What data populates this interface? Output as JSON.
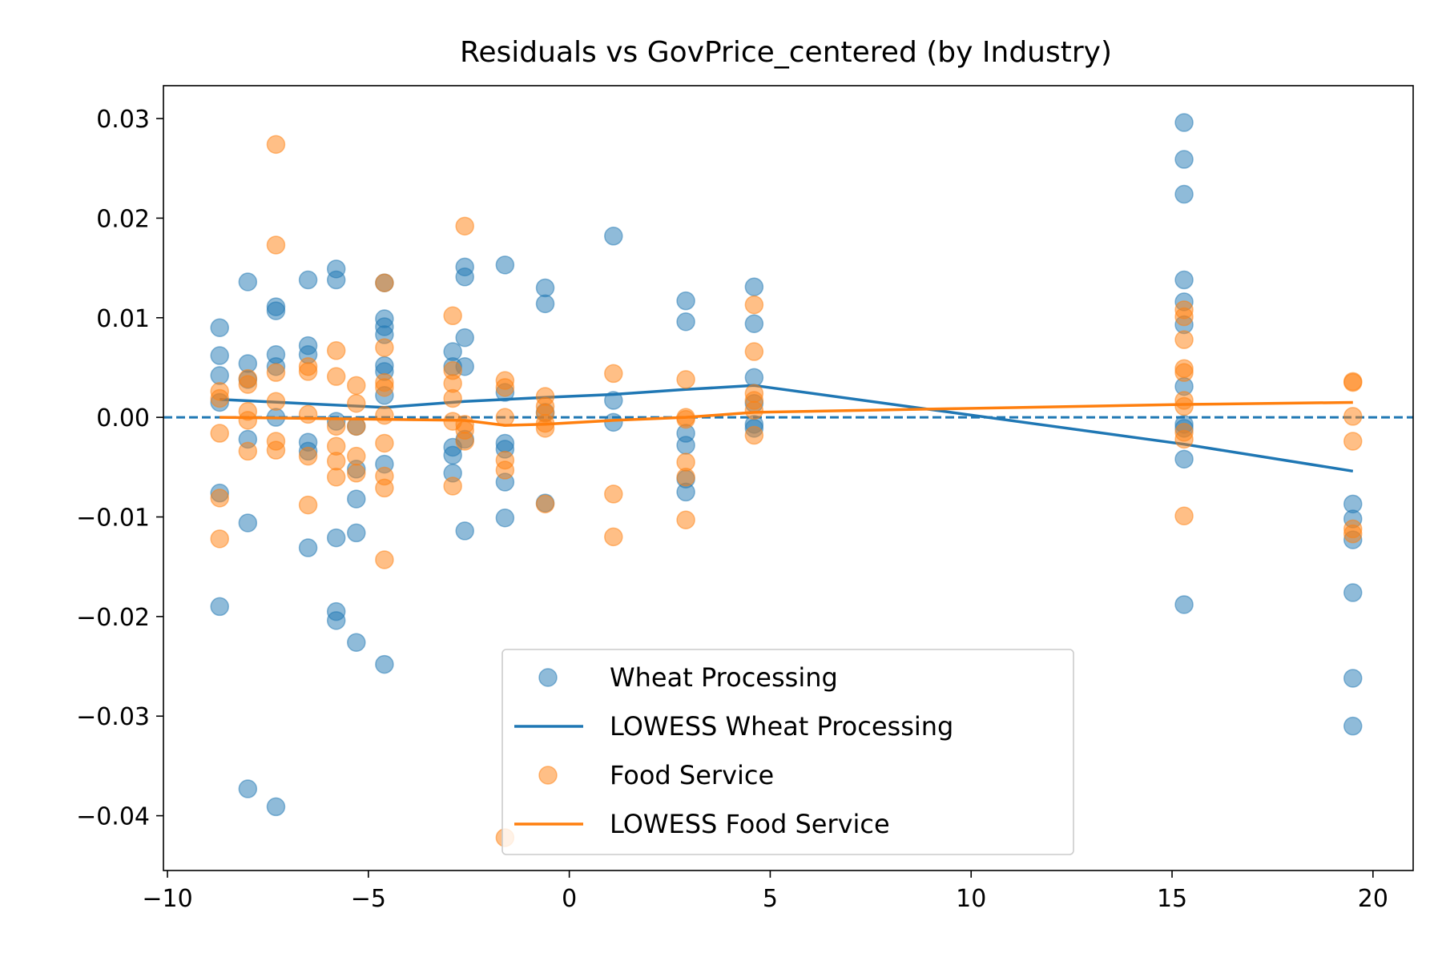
{
  "chart_data": {
    "type": "scatter",
    "title": "Residuals vs GovPrice_centered (by Industry)",
    "xlabel": "",
    "ylabel": "",
    "xlim": [
      -10.1,
      21.0
    ],
    "ylim": [
      -0.0455,
      0.0333
    ],
    "xticks": [
      -10,
      -5,
      0,
      5,
      10,
      15,
      20
    ],
    "xtick_labels": [
      "−10",
      "−5",
      "0",
      "5",
      "10",
      "15",
      "20"
    ],
    "yticks": [
      0.03,
      0.02,
      0.01,
      0.0,
      -0.01,
      -0.02,
      -0.03,
      -0.04
    ],
    "ytick_labels": [
      "0.03",
      "0.02",
      "0.01",
      "0.00",
      "−0.01",
      "−0.02",
      "−0.03",
      "−0.04"
    ],
    "grid": false,
    "legend_position": "lower-center",
    "reference_line": {
      "y": 0,
      "style": "dashed",
      "color": "#1f77b4"
    },
    "series": [
      {
        "name": "Wheat Processing",
        "kind": "scatter",
        "color": "#1f77b4",
        "points": [
          [
            -8.7,
            0.009
          ],
          [
            -8.7,
            0.0062
          ],
          [
            -8.7,
            0.0042
          ],
          [
            -8.7,
            0.0015
          ],
          [
            -8.7,
            -0.0076
          ],
          [
            -8.7,
            -0.019
          ],
          [
            -8.0,
            0.0136
          ],
          [
            -8.0,
            0.0054
          ],
          [
            -8.0,
            0.0038
          ],
          [
            -8.0,
            -0.0022
          ],
          [
            -8.0,
            -0.0106
          ],
          [
            -8.0,
            -0.0373
          ],
          [
            -7.3,
            0.0111
          ],
          [
            -7.3,
            0.0107
          ],
          [
            -7.3,
            0.0063
          ],
          [
            -7.3,
            0.0051
          ],
          [
            -7.3,
            0.0
          ],
          [
            -7.3,
            -0.0391
          ],
          [
            -6.5,
            0.0138
          ],
          [
            -6.5,
            0.0072
          ],
          [
            -6.5,
            0.0063
          ],
          [
            -6.5,
            -0.0025
          ],
          [
            -6.5,
            -0.0034
          ],
          [
            -6.5,
            -0.0131
          ],
          [
            -5.8,
            0.0149
          ],
          [
            -5.8,
            0.0138
          ],
          [
            -5.8,
            -0.0004
          ],
          [
            -5.8,
            -0.0121
          ],
          [
            -5.8,
            -0.0195
          ],
          [
            -5.8,
            -0.0204
          ],
          [
            -5.3,
            -0.0009
          ],
          [
            -5.3,
            -0.0052
          ],
          [
            -5.3,
            -0.0082
          ],
          [
            -5.3,
            -0.0116
          ],
          [
            -5.3,
            -0.0226
          ],
          [
            -4.6,
            0.0135
          ],
          [
            -4.6,
            0.0099
          ],
          [
            -4.6,
            0.0091
          ],
          [
            -4.6,
            0.0083
          ],
          [
            -4.6,
            0.0052
          ],
          [
            -4.6,
            0.0046
          ],
          [
            -4.6,
            0.0022
          ],
          [
            -4.6,
            -0.0047
          ],
          [
            -4.6,
            -0.0248
          ],
          [
            -2.9,
            0.0066
          ],
          [
            -2.9,
            0.0051
          ],
          [
            -2.9,
            -0.003
          ],
          [
            -2.9,
            -0.0038
          ],
          [
            -2.9,
            -0.0056
          ],
          [
            -2.6,
            0.0151
          ],
          [
            -2.6,
            0.0141
          ],
          [
            -2.6,
            0.008
          ],
          [
            -2.6,
            0.0051
          ],
          [
            -2.6,
            -0.0022
          ],
          [
            -2.6,
            -0.0114
          ],
          [
            -1.6,
            0.0153
          ],
          [
            -1.6,
            0.0025
          ],
          [
            -1.6,
            -0.0026
          ],
          [
            -1.6,
            -0.0032
          ],
          [
            -1.6,
            -0.0065
          ],
          [
            -1.6,
            -0.0101
          ],
          [
            -0.6,
            0.013
          ],
          [
            -0.6,
            0.0114
          ],
          [
            -0.6,
            0.0005
          ],
          [
            -0.6,
            -0.0086
          ],
          [
            1.1,
            0.0182
          ],
          [
            1.1,
            0.0017
          ],
          [
            1.1,
            -0.0005
          ],
          [
            2.9,
            0.0117
          ],
          [
            2.9,
            0.0096
          ],
          [
            2.9,
            -0.0016
          ],
          [
            2.9,
            -0.0028
          ],
          [
            2.9,
            -0.0062
          ],
          [
            2.9,
            -0.0075
          ],
          [
            4.6,
            0.0131
          ],
          [
            4.6,
            0.0094
          ],
          [
            4.6,
            0.004
          ],
          [
            4.6,
            0.0014
          ],
          [
            4.6,
            -0.0007
          ],
          [
            4.6,
            -0.0011
          ],
          [
            15.3,
            0.0296
          ],
          [
            15.3,
            0.0259
          ],
          [
            15.3,
            0.0224
          ],
          [
            15.3,
            0.0138
          ],
          [
            15.3,
            0.0116
          ],
          [
            15.3,
            0.0093
          ],
          [
            15.3,
            0.0031
          ],
          [
            15.3,
            -0.0007
          ],
          [
            15.3,
            -0.0011
          ],
          [
            15.3,
            -0.0042
          ],
          [
            15.3,
            -0.0188
          ],
          [
            19.5,
            -0.0087
          ],
          [
            19.5,
            -0.0102
          ],
          [
            19.5,
            -0.0123
          ],
          [
            19.5,
            -0.0176
          ],
          [
            19.5,
            -0.0262
          ],
          [
            19.5,
            -0.031
          ]
        ]
      },
      {
        "name": "LOWESS Wheat Processing",
        "kind": "line",
        "color": "#1f77b4",
        "points": [
          [
            -8.7,
            0.0018
          ],
          [
            -4.6,
            0.001
          ],
          [
            -2.6,
            0.0016
          ],
          [
            -0.6,
            0.002
          ],
          [
            1.1,
            0.0023
          ],
          [
            2.9,
            0.0028
          ],
          [
            4.6,
            0.0032
          ],
          [
            15.3,
            -0.0027
          ],
          [
            19.5,
            -0.0054
          ]
        ]
      },
      {
        "name": "Food Service",
        "kind": "scatter",
        "color": "#ff7f0e",
        "points": [
          [
            -8.7,
            0.0026
          ],
          [
            -8.7,
            0.0019
          ],
          [
            -8.7,
            -0.0016
          ],
          [
            -8.7,
            -0.0081
          ],
          [
            -8.7,
            -0.0122
          ],
          [
            -8.0,
            0.0039
          ],
          [
            -8.0,
            0.0033
          ],
          [
            -8.0,
            0.0006
          ],
          [
            -8.0,
            -0.0003
          ],
          [
            -8.0,
            -0.0034
          ],
          [
            -7.3,
            0.0274
          ],
          [
            -7.3,
            0.0173
          ],
          [
            -7.3,
            0.0045
          ],
          [
            -7.3,
            0.0016
          ],
          [
            -7.3,
            -0.0024
          ],
          [
            -7.3,
            -0.0033
          ],
          [
            -6.5,
            0.0051
          ],
          [
            -6.5,
            0.0046
          ],
          [
            -6.5,
            0.0003
          ],
          [
            -6.5,
            -0.0039
          ],
          [
            -6.5,
            -0.0088
          ],
          [
            -5.8,
            0.0067
          ],
          [
            -5.8,
            0.0041
          ],
          [
            -5.8,
            -0.0009
          ],
          [
            -5.8,
            -0.0029
          ],
          [
            -5.8,
            -0.0044
          ],
          [
            -5.8,
            -0.006
          ],
          [
            -5.3,
            0.0032
          ],
          [
            -5.3,
            0.0014
          ],
          [
            -5.3,
            -0.0009
          ],
          [
            -5.3,
            -0.0039
          ],
          [
            -5.3,
            -0.0056
          ],
          [
            -4.6,
            0.0135
          ],
          [
            -4.6,
            0.007
          ],
          [
            -4.6,
            0.0035
          ],
          [
            -4.6,
            0.003
          ],
          [
            -4.6,
            0.0002
          ],
          [
            -4.6,
            -0.0026
          ],
          [
            -4.6,
            -0.0059
          ],
          [
            -4.6,
            -0.0071
          ],
          [
            -4.6,
            -0.0143
          ],
          [
            -2.9,
            0.0102
          ],
          [
            -2.9,
            0.0047
          ],
          [
            -2.9,
            0.0034
          ],
          [
            -2.9,
            0.0019
          ],
          [
            -2.9,
            -0.0004
          ],
          [
            -2.9,
            -0.0069
          ],
          [
            -2.6,
            0.0192
          ],
          [
            -2.6,
            -0.0007
          ],
          [
            -2.6,
            -0.0013
          ],
          [
            -2.6,
            -0.0024
          ],
          [
            -1.6,
            0.0037
          ],
          [
            -1.6,
            0.003
          ],
          [
            -1.6,
            0.0
          ],
          [
            -1.6,
            -0.0043
          ],
          [
            -1.6,
            -0.0053
          ],
          [
            -1.6,
            -0.0422
          ],
          [
            -0.6,
            0.0021
          ],
          [
            -0.6,
            0.0011
          ],
          [
            -0.6,
            0.0004
          ],
          [
            -0.6,
            -0.0006
          ],
          [
            -0.6,
            -0.0011
          ],
          [
            -0.6,
            -0.0087
          ],
          [
            1.1,
            0.0044
          ],
          [
            1.1,
            -0.0077
          ],
          [
            1.1,
            -0.012
          ],
          [
            2.9,
            0.0038
          ],
          [
            2.9,
            0.0
          ],
          [
            2.9,
            -0.0002
          ],
          [
            2.9,
            -0.0045
          ],
          [
            2.9,
            -0.006
          ],
          [
            2.9,
            -0.0103
          ],
          [
            4.6,
            0.0113
          ],
          [
            4.6,
            0.0066
          ],
          [
            4.6,
            0.0024
          ],
          [
            4.6,
            0.0017
          ],
          [
            4.6,
            0.0007
          ],
          [
            4.6,
            -0.0018
          ],
          [
            15.3,
            0.0108
          ],
          [
            15.3,
            0.0101
          ],
          [
            15.3,
            0.0078
          ],
          [
            15.3,
            0.0049
          ],
          [
            15.3,
            0.0045
          ],
          [
            15.3,
            0.0017
          ],
          [
            15.3,
            0.0011
          ],
          [
            15.3,
            -0.0015
          ],
          [
            15.3,
            -0.0022
          ],
          [
            15.3,
            -0.0099
          ],
          [
            19.5,
            0.0036
          ],
          [
            19.5,
            0.0035
          ],
          [
            19.5,
            0.0001
          ],
          [
            19.5,
            -0.0024
          ],
          [
            19.5,
            -0.0112
          ],
          [
            19.5,
            -0.0117
          ]
        ]
      },
      {
        "name": "LOWESS Food Service",
        "kind": "line",
        "color": "#ff7f0e",
        "points": [
          [
            -8.7,
            0.0
          ],
          [
            -4.6,
            -0.0002
          ],
          [
            -2.6,
            -0.0003
          ],
          [
            -1.6,
            -0.0008
          ],
          [
            -0.6,
            -0.0007
          ],
          [
            1.1,
            -0.0003
          ],
          [
            2.9,
            0.0
          ],
          [
            4.6,
            0.0005
          ],
          [
            15.3,
            0.0013
          ],
          [
            19.5,
            0.0015
          ]
        ]
      }
    ]
  }
}
